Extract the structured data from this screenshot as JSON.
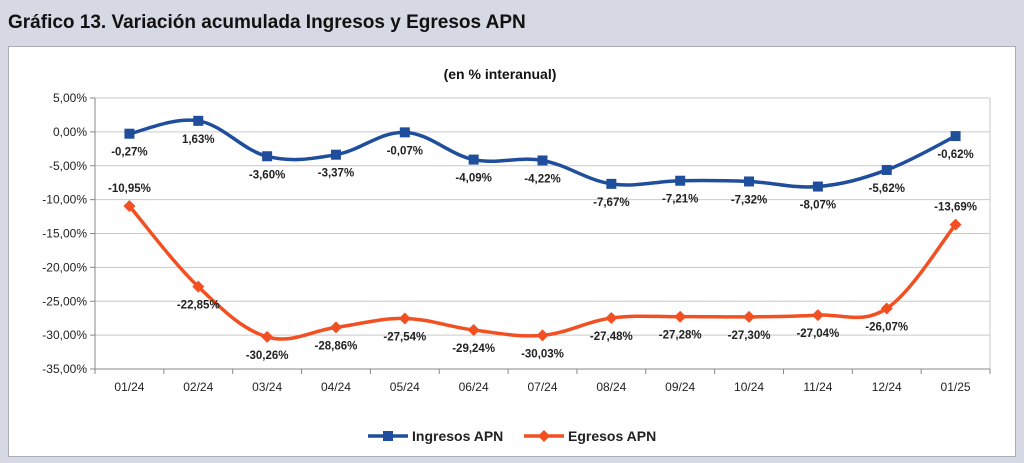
{
  "header": {
    "title": "Gráfico 13. Variación acumulada Ingresos y Egresos APN"
  },
  "chart_data": {
    "type": "line",
    "title": "Gráfico 13. Variación acumulada Ingresos y Egresos APN",
    "subtitle": "(en % interanual)",
    "categories": [
      "01/24",
      "02/24",
      "03/24",
      "04/24",
      "05/24",
      "06/24",
      "07/24",
      "08/24",
      "09/24",
      "10/24",
      "11/24",
      "12/24",
      "01/25"
    ],
    "y_ticks": [
      "5,00%",
      "0,00%",
      "-5,00%",
      "-10,00%",
      "-15,00%",
      "-20,00%",
      "-25,00%",
      "-30,00%",
      "-35,00%"
    ],
    "ylim": [
      -35,
      5
    ],
    "grid": true,
    "legend_position": "bottom",
    "series": [
      {
        "name": "Ingresos APN",
        "color": "#1f4e9c",
        "marker": "square",
        "values": [
          -0.27,
          1.63,
          -3.6,
          -3.37,
          -0.07,
          -4.09,
          -4.22,
          -7.67,
          -7.21,
          -7.32,
          -8.07,
          -5.62,
          -0.62
        ],
        "labels": [
          "-0,27%",
          "1,63%",
          "-3,60%",
          "-3,37%",
          "-0,07%",
          "-4,09%",
          "-4,22%",
          "-7,67%",
          "-7,21%",
          "-7,32%",
          "-8,07%",
          "-5,62%",
          "-0,62%"
        ]
      },
      {
        "name": "Egresos APN",
        "color": "#f25022",
        "marker": "diamond",
        "values": [
          -10.95,
          -22.85,
          -30.26,
          -28.86,
          -27.54,
          -29.24,
          -30.03,
          -27.48,
          -27.28,
          -27.3,
          -27.04,
          -26.07,
          -13.69
        ],
        "labels": [
          "-10,95%",
          "-22,85%",
          "-30,26%",
          "-28,86%",
          "-27,54%",
          "-29,24%",
          "-30,03%",
          "-27,48%",
          "-27,28%",
          "-27,30%",
          "-27,04%",
          "-26,07%",
          "-13,69%"
        ]
      }
    ]
  }
}
